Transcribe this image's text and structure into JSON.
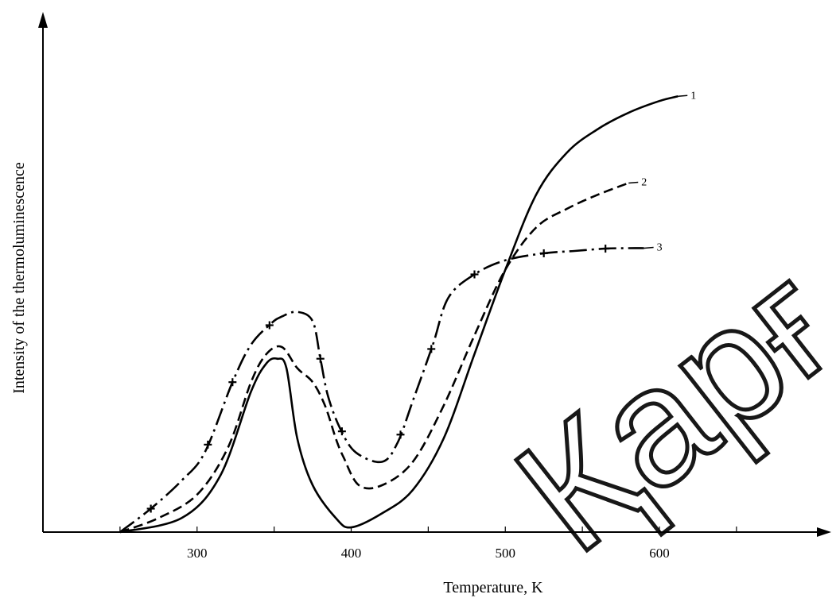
{
  "chart_data": {
    "type": "line",
    "title": "",
    "xlabel": "Temperature, K",
    "ylabel": "Intensity of the thermoluminescence",
    "xlim": [
      200,
      820
    ],
    "ylim": [
      0,
      100
    ],
    "x_ticks": [
      300,
      400,
      500,
      600
    ],
    "x_minor_ticks": [
      250,
      350,
      450,
      550,
      650
    ],
    "grid": false,
    "legend": "inline labels at curve ends",
    "series": [
      {
        "name": "1",
        "style": "solid",
        "x": [
          250,
          290,
          315,
          335,
          345,
          352,
          358,
          365,
          375,
          390,
          400,
          420,
          440,
          460,
          480,
          500,
          520,
          540,
          560,
          580,
          600,
          612
        ],
        "y": [
          0,
          3,
          12,
          30,
          36,
          37,
          35,
          20,
          10,
          3,
          1,
          4,
          9,
          20,
          38,
          56,
          72,
          81,
          86,
          89.5,
          92,
          93
        ]
      },
      {
        "name": "2",
        "style": "dashed",
        "x": [
          250,
          275,
          300,
          320,
          335,
          345,
          355,
          365,
          375,
          383,
          390,
          395,
          405,
          420,
          440,
          460,
          480,
          500,
          520,
          540,
          560,
          580
        ],
        "y": [
          0,
          3,
          8,
          18,
          32,
          38,
          39.5,
          35,
          32,
          27,
          20,
          16,
          10,
          10,
          15,
          27,
          42,
          56,
          65,
          69,
          72,
          74.5
        ]
      },
      {
        "name": "3",
        "style": "dash-dot",
        "x": [
          250,
          270,
          290,
          305,
          323,
          335,
          348,
          355,
          365,
          375,
          380,
          385,
          393,
          403,
          420,
          430,
          440,
          453,
          463,
          480,
          500,
          525,
          545,
          565,
          580,
          590
        ],
        "y": [
          0,
          5,
          11,
          17,
          32,
          40,
          44.5,
          46,
          47,
          45,
          37,
          29,
          22,
          17,
          15,
          19,
          28,
          40,
          50,
          55,
          58,
          59.5,
          60,
          60.5,
          60.6,
          60.6
        ]
      }
    ],
    "marker_series": {
      "series": "3",
      "x": [
        270,
        307,
        323,
        347,
        380,
        394,
        432,
        452,
        480,
        525,
        565
      ]
    },
    "watermark": "Қарғ"
  }
}
